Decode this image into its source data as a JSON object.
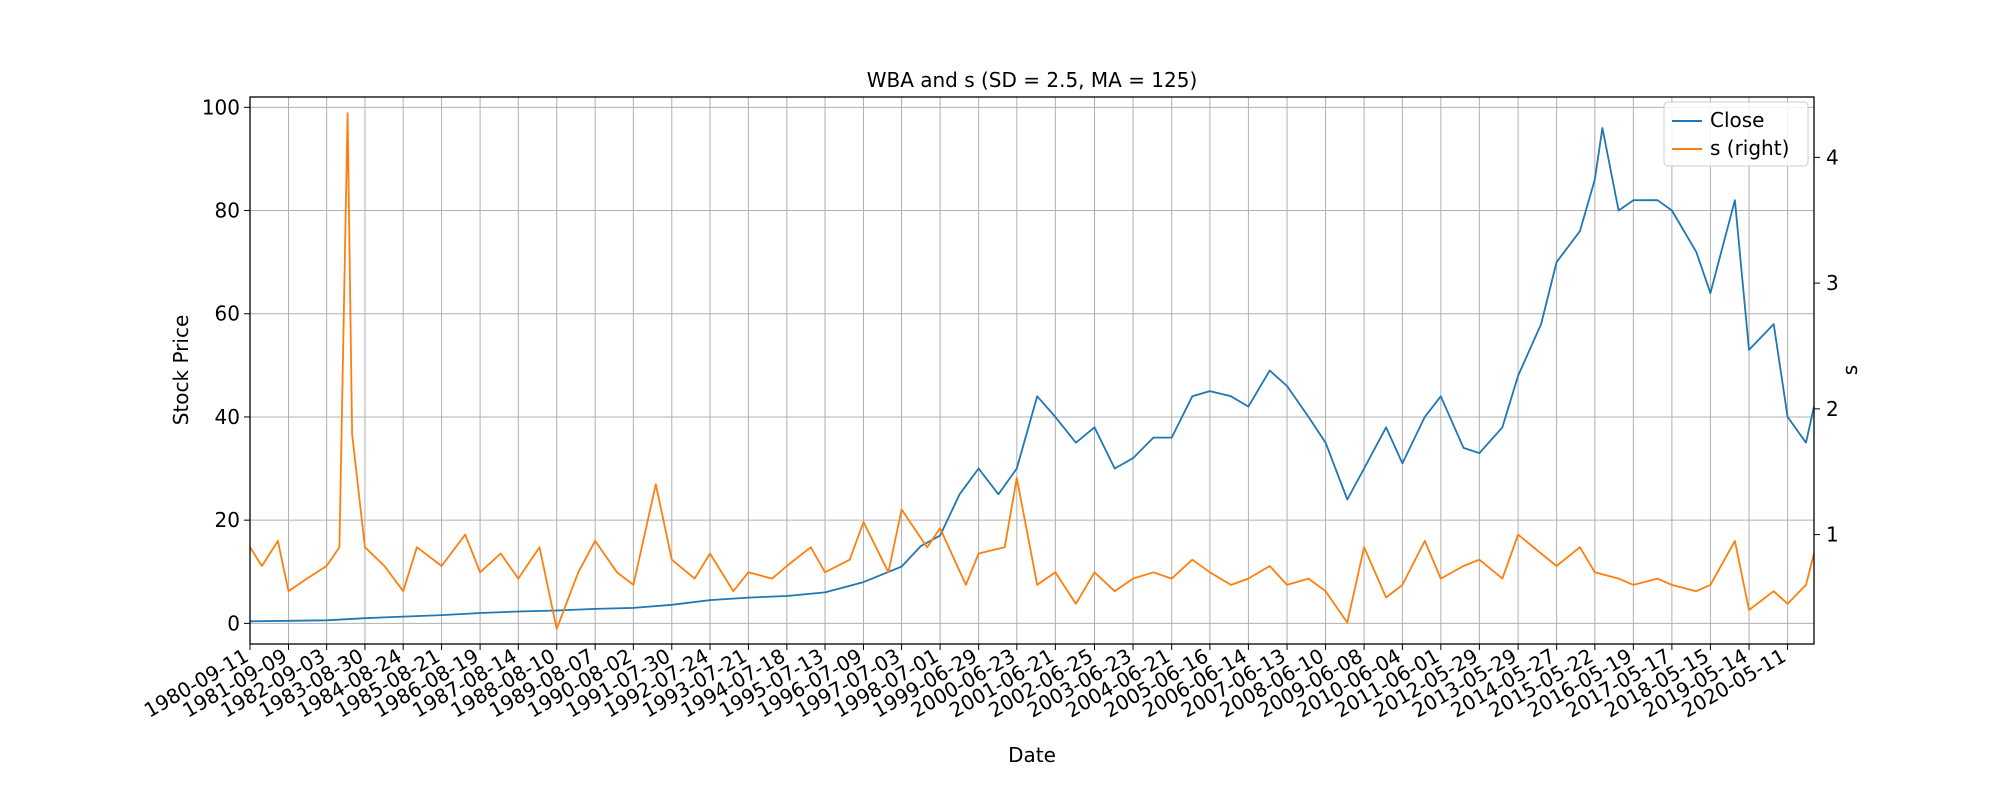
{
  "chart_data": {
    "type": "line",
    "title": "WBA and s (SD = 2.5, MA = 125)",
    "xlabel": "Date",
    "ylabel": "Stock Price",
    "ylabel_right": "s",
    "x_range": [
      "1980-09-11",
      "2021-01-15"
    ],
    "ylim": [
      -4,
      102
    ],
    "ylim_right": [
      0.13,
      4.48
    ],
    "y_ticks": [
      0,
      20,
      40,
      60,
      80,
      100
    ],
    "y_ticks_right": [
      1,
      2,
      3,
      4
    ],
    "x_ticks": [
      "1980-09-11",
      "1981-09-09",
      "1982-09-03",
      "1983-08-30",
      "1984-08-24",
      "1985-08-21",
      "1986-08-19",
      "1987-08-14",
      "1988-08-10",
      "1989-08-07",
      "1990-08-02",
      "1991-07-30",
      "1992-07-24",
      "1993-07-21",
      "1994-07-18",
      "1995-07-13",
      "1996-07-09",
      "1997-07-03",
      "1998-07-01",
      "1999-06-29",
      "2000-06-23",
      "2001-06-21",
      "2002-06-25",
      "2003-06-23",
      "2004-06-21",
      "2005-06-16",
      "2006-06-14",
      "2007-06-13",
      "2008-06-10",
      "2009-06-08",
      "2010-06-04",
      "2011-06-01",
      "2012-05-29",
      "2013-05-29",
      "2014-05-27",
      "2015-05-22",
      "2016-05-19",
      "2017-05-17",
      "2018-05-15",
      "2019-05-14",
      "2020-05-11"
    ],
    "grid": true,
    "legend_position": "top-right",
    "colors": {
      "close": "#1f77b4",
      "s": "#ff7f0e",
      "grid": "#b0b0b0"
    },
    "series": [
      {
        "name": "Close",
        "axis": "left",
        "points": [
          [
            "1980-09-11",
            0.4
          ],
          [
            "1981-09-09",
            0.5
          ],
          [
            "1982-09-03",
            0.6
          ],
          [
            "1983-08-30",
            1.0
          ],
          [
            "1984-08-24",
            1.3
          ],
          [
            "1985-08-21",
            1.6
          ],
          [
            "1986-08-19",
            2.0
          ],
          [
            "1987-08-14",
            2.3
          ],
          [
            "1988-08-10",
            2.5
          ],
          [
            "1989-08-07",
            2.8
          ],
          [
            "1990-08-02",
            3.0
          ],
          [
            "1991-07-30",
            3.6
          ],
          [
            "1992-07-24",
            4.5
          ],
          [
            "1993-07-21",
            5.0
          ],
          [
            "1994-07-18",
            5.3
          ],
          [
            "1995-07-13",
            6.0
          ],
          [
            "1996-07-09",
            8.0
          ],
          [
            "1997-07-03",
            11.0
          ],
          [
            "1998-01-01",
            15.0
          ],
          [
            "1998-07-01",
            17.0
          ],
          [
            "1999-01-01",
            25.0
          ],
          [
            "1999-06-29",
            30.0
          ],
          [
            "2000-01-01",
            25.0
          ],
          [
            "2000-06-23",
            30.0
          ],
          [
            "2001-01-01",
            44.0
          ],
          [
            "2001-06-21",
            40.0
          ],
          [
            "2002-01-01",
            35.0
          ],
          [
            "2002-06-25",
            38.0
          ],
          [
            "2003-01-01",
            30.0
          ],
          [
            "2003-06-23",
            32.0
          ],
          [
            "2004-01-01",
            36.0
          ],
          [
            "2004-06-21",
            36.0
          ],
          [
            "2005-01-01",
            44.0
          ],
          [
            "2005-06-16",
            45.0
          ],
          [
            "2006-01-01",
            44.0
          ],
          [
            "2006-06-14",
            42.0
          ],
          [
            "2007-01-01",
            49.0
          ],
          [
            "2007-06-13",
            46.0
          ],
          [
            "2008-01-01",
            40.0
          ],
          [
            "2008-06-10",
            35.0
          ],
          [
            "2009-01-01",
            24.0
          ],
          [
            "2009-06-08",
            30.0
          ],
          [
            "2010-01-01",
            38.0
          ],
          [
            "2010-06-04",
            31.0
          ],
          [
            "2011-01-01",
            40.0
          ],
          [
            "2011-06-01",
            44.0
          ],
          [
            "2012-01-01",
            34.0
          ],
          [
            "2012-05-29",
            33.0
          ],
          [
            "2013-01-01",
            38.0
          ],
          [
            "2013-05-29",
            48.0
          ],
          [
            "2014-01-01",
            58.0
          ],
          [
            "2014-05-27",
            70.0
          ],
          [
            "2015-01-01",
            76.0
          ],
          [
            "2015-05-22",
            86.0
          ],
          [
            "2015-08-01",
            96.0
          ],
          [
            "2016-01-01",
            80.0
          ],
          [
            "2016-05-19",
            82.0
          ],
          [
            "2017-01-01",
            82.0
          ],
          [
            "2017-05-17",
            80.0
          ],
          [
            "2018-01-01",
            72.0
          ],
          [
            "2018-05-15",
            64.0
          ],
          [
            "2019-01-01",
            82.0
          ],
          [
            "2019-05-14",
            53.0
          ],
          [
            "2020-01-01",
            58.0
          ],
          [
            "2020-05-11",
            40.0
          ],
          [
            "2020-11-01",
            35.0
          ],
          [
            "2021-01-15",
            42.0
          ]
        ]
      },
      {
        "name": "s (right)",
        "axis": "right",
        "points": [
          [
            "1980-09-11",
            0.9
          ],
          [
            "1981-01-01",
            0.75
          ],
          [
            "1981-06-01",
            0.95
          ],
          [
            "1981-09-09",
            0.55
          ],
          [
            "1982-03-01",
            0.65
          ],
          [
            "1982-09-03",
            0.75
          ],
          [
            "1983-01-01",
            0.9
          ],
          [
            "1983-03-20",
            4.35
          ],
          [
            "1983-05-01",
            1.8
          ],
          [
            "1983-08-30",
            0.9
          ],
          [
            "1984-03-01",
            0.75
          ],
          [
            "1984-08-24",
            0.55
          ],
          [
            "1985-01-01",
            0.9
          ],
          [
            "1985-08-21",
            0.75
          ],
          [
            "1986-04-01",
            1.0
          ],
          [
            "1986-08-19",
            0.7
          ],
          [
            "1987-03-01",
            0.85
          ],
          [
            "1987-08-14",
            0.65
          ],
          [
            "1988-03-01",
            0.9
          ],
          [
            "1988-08-10",
            0.25
          ],
          [
            "1989-03-01",
            0.7
          ],
          [
            "1989-08-07",
            0.95
          ],
          [
            "1990-03-01",
            0.7
          ],
          [
            "1990-08-02",
            0.6
          ],
          [
            "1991-03-01",
            1.4
          ],
          [
            "1991-07-30",
            0.8
          ],
          [
            "1992-03-01",
            0.65
          ],
          [
            "1992-07-24",
            0.85
          ],
          [
            "1993-03-01",
            0.55
          ],
          [
            "1993-07-21",
            0.7
          ],
          [
            "1994-03-01",
            0.65
          ],
          [
            "1994-07-18",
            0.75
          ],
          [
            "1995-03-01",
            0.9
          ],
          [
            "1995-07-13",
            0.7
          ],
          [
            "1996-03-01",
            0.8
          ],
          [
            "1996-07-09",
            1.1
          ],
          [
            "1997-03-01",
            0.7
          ],
          [
            "1997-07-03",
            1.2
          ],
          [
            "1998-03-01",
            0.9
          ],
          [
            "1998-07-01",
            1.05
          ],
          [
            "1999-03-01",
            0.6
          ],
          [
            "1999-06-29",
            0.85
          ],
          [
            "2000-03-01",
            0.9
          ],
          [
            "2000-06-23",
            1.45
          ],
          [
            "2001-01-01",
            0.6
          ],
          [
            "2001-06-21",
            0.7
          ],
          [
            "2002-01-01",
            0.45
          ],
          [
            "2002-06-25",
            0.7
          ],
          [
            "2003-01-01",
            0.55
          ],
          [
            "2003-06-23",
            0.65
          ],
          [
            "2004-01-01",
            0.7
          ],
          [
            "2004-06-21",
            0.65
          ],
          [
            "2005-01-01",
            0.8
          ],
          [
            "2005-06-16",
            0.7
          ],
          [
            "2006-01-01",
            0.6
          ],
          [
            "2006-06-14",
            0.65
          ],
          [
            "2007-01-01",
            0.75
          ],
          [
            "2007-06-13",
            0.6
          ],
          [
            "2008-01-01",
            0.65
          ],
          [
            "2008-06-10",
            0.55
          ],
          [
            "2009-01-01",
            0.3
          ],
          [
            "2009-06-08",
            0.9
          ],
          [
            "2010-01-01",
            0.5
          ],
          [
            "2010-06-04",
            0.6
          ],
          [
            "2011-01-01",
            0.95
          ],
          [
            "2011-06-01",
            0.65
          ],
          [
            "2012-01-01",
            0.75
          ],
          [
            "2012-05-29",
            0.8
          ],
          [
            "2013-01-01",
            0.65
          ],
          [
            "2013-05-29",
            1.0
          ],
          [
            "2014-01-01",
            0.85
          ],
          [
            "2014-05-27",
            0.75
          ],
          [
            "2015-01-01",
            0.9
          ],
          [
            "2015-05-22",
            0.7
          ],
          [
            "2016-01-01",
            0.65
          ],
          [
            "2016-05-19",
            0.6
          ],
          [
            "2017-01-01",
            0.65
          ],
          [
            "2017-05-17",
            0.6
          ],
          [
            "2018-01-01",
            0.55
          ],
          [
            "2018-05-15",
            0.6
          ],
          [
            "2019-01-01",
            0.95
          ],
          [
            "2019-05-14",
            0.4
          ],
          [
            "2020-01-01",
            0.55
          ],
          [
            "2020-05-11",
            0.45
          ],
          [
            "2020-11-01",
            0.6
          ],
          [
            "2021-01-15",
            0.85
          ]
        ]
      }
    ]
  }
}
